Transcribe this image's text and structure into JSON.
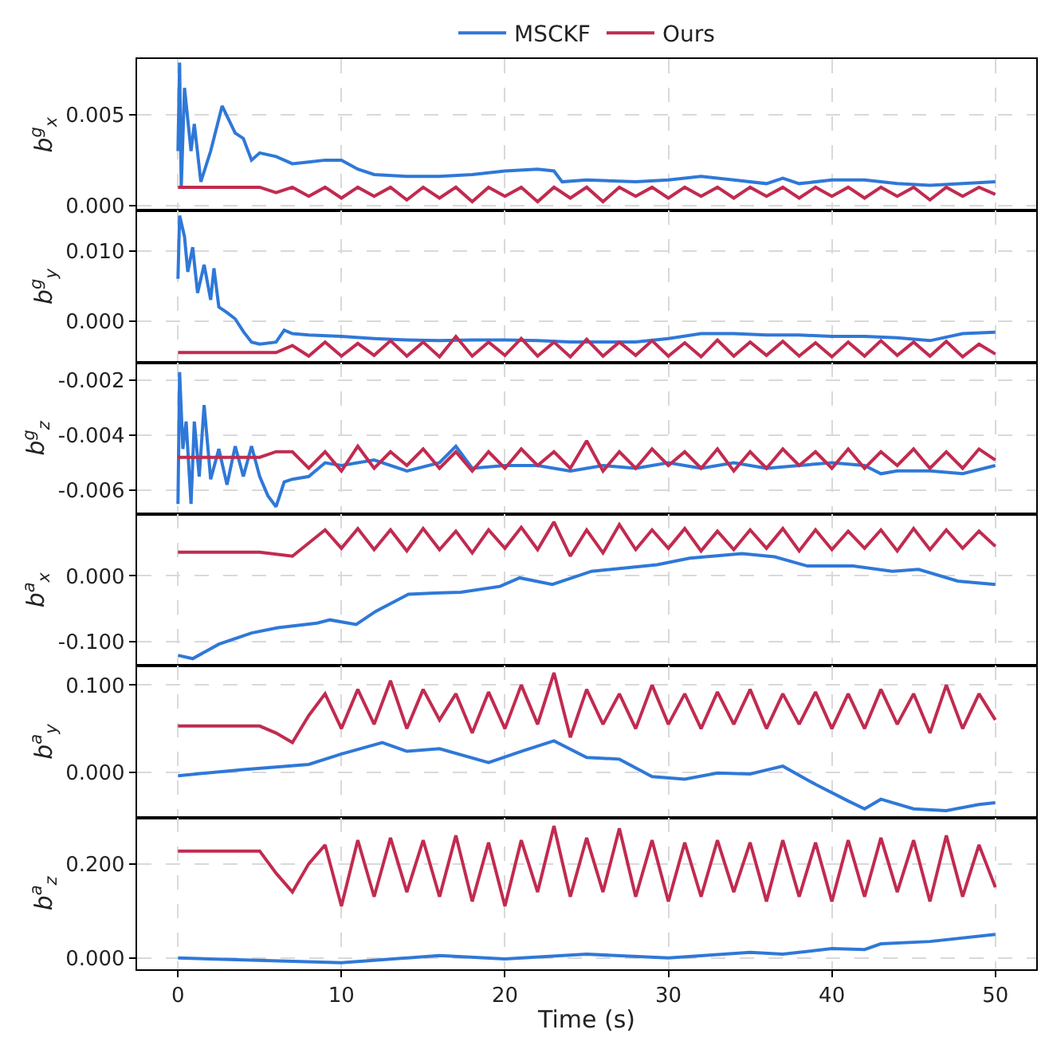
{
  "chart_data": [
    {
      "type": "line",
      "ylabel": "b$^{g}$$_{x}$",
      "legend": "top",
      "grid": true,
      "tick_labels": "y",
      "x": [
        0,
        5,
        6,
        7,
        8,
        9,
        10,
        11,
        12,
        13,
        14,
        15,
        16,
        17,
        18,
        19,
        20,
        21,
        22,
        23,
        24,
        25,
        26,
        27,
        28,
        29,
        30,
        31,
        32,
        33,
        34,
        35,
        36,
        37,
        38,
        39,
        40,
        41,
        42,
        43,
        44,
        45,
        46,
        47,
        48,
        49,
        50
      ],
      "xlim": [
        -2.5,
        52.5
      ],
      "xticks": [
        0,
        10,
        20,
        30,
        40,
        50
      ],
      "ylim": [
        -0.0003,
        0.0081
      ],
      "yticks": [
        {
          "value": 0,
          "label": "0.000"
        },
        {
          "value": 0.005,
          "label": "0.005"
        }
      ],
      "series": [
        {
          "name": "MSCKF",
          "color": "#2f78d8",
          "x": [
            0,
            0.1,
            0.2,
            0.4,
            0.8,
            1,
            1.4,
            2,
            2.7,
            3.5,
            4,
            4.5,
            5,
            6,
            7,
            8,
            9,
            10,
            11,
            12,
            14,
            16,
            18,
            20,
            22,
            23,
            23.5,
            25,
            28,
            30,
            32,
            34,
            36,
            37,
            38,
            40,
            42,
            44,
            46,
            48,
            50
          ],
          "values": [
            0.003,
            0.0079,
            0.001,
            0.0065,
            0.003,
            0.0045,
            0.0013,
            0.003,
            0.0055,
            0.004,
            0.0037,
            0.0025,
            0.0029,
            0.0027,
            0.0023,
            0.0024,
            0.0025,
            0.0025,
            0.002,
            0.0017,
            0.0016,
            0.0016,
            0.0017,
            0.0019,
            0.002,
            0.0019,
            0.0013,
            0.0014,
            0.0013,
            0.0014,
            0.0016,
            0.0014,
            0.0012,
            0.0015,
            0.0012,
            0.0014,
            0.0014,
            0.0012,
            0.0011,
            0.0012,
            0.0013
          ]
        },
        {
          "name": "Ours",
          "color": "#c12b50",
          "values": [
            0.001,
            0.001,
            0.0007,
            0.001,
            0.0005,
            0.001,
            0.0004,
            0.001,
            0.0005,
            0.001,
            0.0003,
            0.001,
            0.0004,
            0.001,
            0.0002,
            0.001,
            0.0005,
            0.001,
            0.0002,
            0.001,
            0.0004,
            0.001,
            0.0002,
            0.001,
            0.0005,
            0.001,
            0.0004,
            0.001,
            0.0005,
            0.001,
            0.0004,
            0.001,
            0.0005,
            0.001,
            0.0004,
            0.001,
            0.0005,
            0.001,
            0.0004,
            0.001,
            0.0005,
            0.001,
            0.0003,
            0.001,
            0.0005,
            0.001,
            0.0006
          ]
        }
      ]
    },
    {
      "type": "line",
      "ylabel": "b$^{g}$$_{y}$",
      "grid": true,
      "tick_labels": "y",
      "x": [
        0,
        5,
        6,
        7,
        8,
        9,
        10,
        11,
        12,
        13,
        14,
        15,
        16,
        17,
        18,
        19,
        20,
        21,
        22,
        23,
        24,
        25,
        26,
        27,
        28,
        29,
        30,
        31,
        32,
        33,
        34,
        35,
        36,
        37,
        38,
        39,
        40,
        41,
        42,
        43,
        44,
        45,
        46,
        47,
        48,
        49,
        50
      ],
      "xlim": [
        -2.5,
        52.5
      ],
      "xticks": [
        0,
        10,
        20,
        30,
        40,
        50
      ],
      "ylim": [
        -0.0059,
        0.0157
      ],
      "yticks": [
        {
          "value": 0,
          "label": "0.000"
        },
        {
          "value": 0.01,
          "label": "0.010"
        }
      ],
      "series": [
        {
          "color": "#2f78d8",
          "x": [
            0,
            0.1,
            0.4,
            0.6,
            0.9,
            1.2,
            1.6,
            2,
            2.2,
            2.5,
            3,
            3.5,
            4,
            4.5,
            5,
            6,
            6.5,
            7,
            8,
            10,
            12,
            14,
            16,
            18,
            20,
            22,
            24,
            26,
            28,
            30,
            32,
            34,
            36,
            38,
            40,
            42,
            44,
            46,
            48,
            50
          ],
          "values": [
            0.006,
            0.015,
            0.012,
            0.007,
            0.0105,
            0.004,
            0.008,
            0.003,
            0.0075,
            0.002,
            0.0012,
            0.0003,
            -0.0015,
            -0.003,
            -0.0033,
            -0.003,
            -0.0013,
            -0.0018,
            -0.002,
            -0.0022,
            -0.0025,
            -0.0027,
            -0.0028,
            -0.0027,
            -0.0027,
            -0.0028,
            -0.003,
            -0.003,
            -0.003,
            -0.0025,
            -0.0018,
            -0.0018,
            -0.002,
            -0.002,
            -0.0022,
            -0.0022,
            -0.0024,
            -0.0028,
            -0.0018,
            -0.0016
          ]
        },
        {
          "color": "#c12b50",
          "values": [
            -0.0045,
            -0.0045,
            -0.0045,
            -0.0035,
            -0.005,
            -0.003,
            -0.005,
            -0.0032,
            -0.0049,
            -0.0028,
            -0.005,
            -0.003,
            -0.0051,
            -0.0022,
            -0.005,
            -0.003,
            -0.0049,
            -0.0025,
            -0.005,
            -0.003,
            -0.0051,
            -0.0026,
            -0.005,
            -0.003,
            -0.0049,
            -0.0028,
            -0.005,
            -0.0031,
            -0.0051,
            -0.0027,
            -0.005,
            -0.003,
            -0.0049,
            -0.0029,
            -0.005,
            -0.0031,
            -0.0051,
            -0.003,
            -0.005,
            -0.0028,
            -0.0049,
            -0.003,
            -0.005,
            -0.0029,
            -0.0051,
            -0.0033,
            -0.0047
          ]
        }
      ]
    },
    {
      "type": "line",
      "ylabel": "b$^{g}$$_{z}$",
      "grid": true,
      "tick_labels": "y",
      "x": [
        0,
        5,
        6,
        7,
        8,
        9,
        10,
        11,
        12,
        13,
        14,
        15,
        16,
        17,
        18,
        19,
        20,
        21,
        22,
        23,
        24,
        25,
        26,
        27,
        28,
        29,
        30,
        31,
        32,
        33,
        34,
        35,
        36,
        37,
        38,
        39,
        40,
        41,
        42,
        43,
        44,
        45,
        46,
        47,
        48,
        49,
        50
      ],
      "xlim": [
        -2.5,
        52.5
      ],
      "xticks": [
        0,
        10,
        20,
        30,
        40,
        50
      ],
      "ylim": [
        -0.00687,
        -0.00135
      ],
      "yticks": [
        {
          "value": -0.006,
          "label": "-0.006"
        },
        {
          "value": -0.004,
          "label": "-0.004"
        },
        {
          "value": -0.002,
          "label": "-0.002"
        }
      ],
      "series": [
        {
          "color": "#2f78d8",
          "x": [
            0,
            0.1,
            0.3,
            0.5,
            0.8,
            1,
            1.3,
            1.6,
            2,
            2.5,
            3,
            3.5,
            4,
            4.5,
            5,
            5.5,
            6,
            6.5,
            7,
            8,
            9,
            10,
            12,
            14,
            16,
            17,
            18,
            20,
            22,
            24,
            26,
            28,
            30,
            32,
            34,
            36,
            38,
            40,
            42,
            43,
            44,
            46,
            48,
            50
          ],
          "values": [
            -0.0065,
            -0.0017,
            -0.0045,
            -0.0035,
            -0.0065,
            -0.0035,
            -0.0055,
            -0.0029,
            -0.0056,
            -0.0045,
            -0.0058,
            -0.0044,
            -0.0055,
            -0.0044,
            -0.0055,
            -0.0062,
            -0.0066,
            -0.0057,
            -0.0056,
            -0.0055,
            -0.005,
            -0.0051,
            -0.0049,
            -0.0053,
            -0.005,
            -0.0044,
            -0.0052,
            -0.0051,
            -0.0051,
            -0.0053,
            -0.0051,
            -0.0052,
            -0.005,
            -0.0052,
            -0.005,
            -0.0052,
            -0.0051,
            -0.005,
            -0.0051,
            -0.0054,
            -0.0053,
            -0.0053,
            -0.0054,
            -0.0051
          ]
        },
        {
          "color": "#c12b50",
          "values": [
            -0.0048,
            -0.0048,
            -0.0046,
            -0.0046,
            -0.0052,
            -0.0046,
            -0.0053,
            -0.0044,
            -0.0052,
            -0.0046,
            -0.0051,
            -0.0045,
            -0.0052,
            -0.0046,
            -0.0053,
            -0.0046,
            -0.0052,
            -0.0045,
            -0.0051,
            -0.0046,
            -0.0052,
            -0.0042,
            -0.0053,
            -0.0046,
            -0.0052,
            -0.0045,
            -0.0051,
            -0.0046,
            -0.0052,
            -0.0045,
            -0.0053,
            -0.0046,
            -0.0052,
            -0.0045,
            -0.0051,
            -0.0046,
            -0.0052,
            -0.0045,
            -0.0052,
            -0.0046,
            -0.0051,
            -0.0045,
            -0.0052,
            -0.0046,
            -0.0052,
            -0.0045,
            -0.0049
          ]
        }
      ]
    },
    {
      "type": "line",
      "ylabel": "b$^{a}$$_{x}$",
      "grid": true,
      "tick_labels": "y",
      "x": [
        0,
        5,
        6,
        7,
        8,
        9,
        10,
        11,
        12,
        13,
        14,
        15,
        16,
        17,
        18,
        19,
        20,
        21,
        22,
        23,
        24,
        25,
        26,
        27,
        28,
        29,
        30,
        31,
        32,
        33,
        34,
        35,
        36,
        37,
        38,
        39,
        40,
        41,
        42,
        43,
        44,
        45,
        46,
        47,
        48,
        49,
        50
      ],
      "xlim": [
        -2.5,
        52.5
      ],
      "xticks": [
        0,
        10,
        20,
        30,
        40,
        50
      ],
      "ylim": [
        -0.137,
        0.094
      ],
      "yticks": [
        {
          "value": -0.1,
          "label": "-0.100"
        },
        {
          "value": 0,
          "label": "0.000"
        }
      ],
      "series": [
        {
          "color": "#2f78d8",
          "x": [
            0,
            0.9,
            2.5,
            4.5,
            6.1,
            8.5,
            9.3,
            10.9,
            12.1,
            14.1,
            15.7,
            17.3,
            19.7,
            20.9,
            22.9,
            25.3,
            29.3,
            31.3,
            34.5,
            36.5,
            38.5,
            41.3,
            43.7,
            45.3,
            47.7,
            50
          ],
          "values": [
            -0.121,
            -0.126,
            -0.104,
            -0.087,
            -0.079,
            -0.072,
            -0.067,
            -0.074,
            -0.054,
            -0.028,
            -0.026,
            -0.025,
            -0.016,
            -0.003,
            -0.013,
            0.007,
            0.017,
            0.027,
            0.034,
            0.029,
            0.015,
            0.015,
            0.007,
            0.01,
            -0.008,
            -0.013
          ]
        },
        {
          "color": "#c12b50",
          "values": [
            0.036,
            0.036,
            0.033,
            0.03,
            0.05,
            0.07,
            0.042,
            0.072,
            0.04,
            0.07,
            0.038,
            0.072,
            0.04,
            0.068,
            0.035,
            0.07,
            0.042,
            0.074,
            0.04,
            0.082,
            0.03,
            0.07,
            0.035,
            0.078,
            0.04,
            0.07,
            0.042,
            0.072,
            0.038,
            0.068,
            0.04,
            0.07,
            0.042,
            0.072,
            0.038,
            0.07,
            0.04,
            0.068,
            0.042,
            0.07,
            0.038,
            0.072,
            0.04,
            0.07,
            0.042,
            0.068,
            0.045
          ]
        }
      ]
    },
    {
      "type": "line",
      "ylabel": "b$^{a}$$_{y}$",
      "grid": true,
      "tick_labels": "y",
      "x": [
        0,
        5,
        6,
        7,
        8,
        9,
        10,
        11,
        12,
        13,
        14,
        15,
        16,
        17,
        18,
        19,
        20,
        21,
        22,
        23,
        24,
        25,
        26,
        27,
        28,
        29,
        30,
        31,
        32,
        33,
        34,
        35,
        36,
        37,
        38,
        39,
        40,
        41,
        42,
        43,
        44,
        45,
        46,
        47,
        48,
        49,
        50
      ],
      "xlim": [
        -2.5,
        52.5
      ],
      "xticks": [
        0,
        10,
        20,
        30,
        40,
        50
      ],
      "ylim": [
        -0.052,
        0.122
      ],
      "yticks": [
        {
          "value": 0,
          "label": "0.000"
        },
        {
          "value": 0.1,
          "label": "0.100"
        }
      ],
      "series": [
        {
          "color": "#2f78d8",
          "x": [
            0,
            4,
            8,
            10,
            12.5,
            14,
            16,
            19,
            21,
            23,
            25,
            27,
            29,
            31,
            33,
            35,
            37,
            39,
            41,
            42,
            43,
            45,
            47,
            49,
            50
          ],
          "values": [
            -0.004,
            0.003,
            0.009,
            0.021,
            0.034,
            0.024,
            0.027,
            0.011,
            0.024,
            0.036,
            0.017,
            0.015,
            -0.005,
            -0.008,
            -0.001,
            -0.002,
            0.007,
            -0.014,
            -0.033,
            -0.042,
            -0.031,
            -0.042,
            -0.044,
            -0.037,
            -0.035
          ]
        },
        {
          "color": "#c12b50",
          "values": [
            0.053,
            0.053,
            0.045,
            0.034,
            0.065,
            0.09,
            0.05,
            0.095,
            0.055,
            0.105,
            0.05,
            0.095,
            0.06,
            0.09,
            0.045,
            0.092,
            0.05,
            0.1,
            0.055,
            0.114,
            0.04,
            0.095,
            0.055,
            0.09,
            0.05,
            0.1,
            0.055,
            0.09,
            0.05,
            0.092,
            0.055,
            0.095,
            0.05,
            0.09,
            0.055,
            0.092,
            0.05,
            0.09,
            0.05,
            0.095,
            0.055,
            0.09,
            0.045,
            0.1,
            0.05,
            0.09,
            0.06
          ]
        }
      ]
    },
    {
      "type": "line",
      "ylabel": "b$^{a}$$_{z}$",
      "xlabel": "Time (s)",
      "grid": true,
      "x": [
        0,
        5,
        6,
        7,
        8,
        9,
        10,
        11,
        12,
        13,
        14,
        15,
        16,
        17,
        18,
        19,
        20,
        21,
        22,
        23,
        24,
        25,
        26,
        27,
        28,
        29,
        30,
        31,
        32,
        33,
        34,
        35,
        36,
        37,
        38,
        39,
        40,
        41,
        42,
        43,
        44,
        45,
        46,
        47,
        48,
        49,
        50
      ],
      "xlim": [
        -2.5,
        52.5
      ],
      "xticks": [
        0,
        10,
        20,
        30,
        40,
        50
      ],
      "ylim": [
        -0.024,
        0.298
      ],
      "yticks": [
        {
          "value": 0,
          "label": "0.000"
        },
        {
          "value": 0.2,
          "label": "0.200"
        }
      ],
      "series": [
        {
          "color": "#2f78d8",
          "x": [
            0,
            10,
            16,
            20,
            25,
            30,
            35,
            37,
            40,
            42,
            43,
            46,
            50
          ],
          "values": [
            0.0,
            -0.01,
            0.005,
            -0.002,
            0.008,
            0.0,
            0.012,
            0.008,
            0.02,
            0.018,
            0.03,
            0.035,
            0.05
          ]
        },
        {
          "color": "#c12b50",
          "values": [
            0.227,
            0.227,
            0.18,
            0.14,
            0.2,
            0.24,
            0.11,
            0.25,
            0.13,
            0.255,
            0.14,
            0.25,
            0.13,
            0.26,
            0.12,
            0.245,
            0.11,
            0.25,
            0.14,
            0.28,
            0.13,
            0.255,
            0.14,
            0.275,
            0.13,
            0.25,
            0.12,
            0.245,
            0.13,
            0.25,
            0.14,
            0.245,
            0.12,
            0.25,
            0.13,
            0.245,
            0.12,
            0.25,
            0.13,
            0.255,
            0.14,
            0.25,
            0.12,
            0.26,
            0.13,
            0.24,
            0.15
          ]
        }
      ]
    }
  ]
}
